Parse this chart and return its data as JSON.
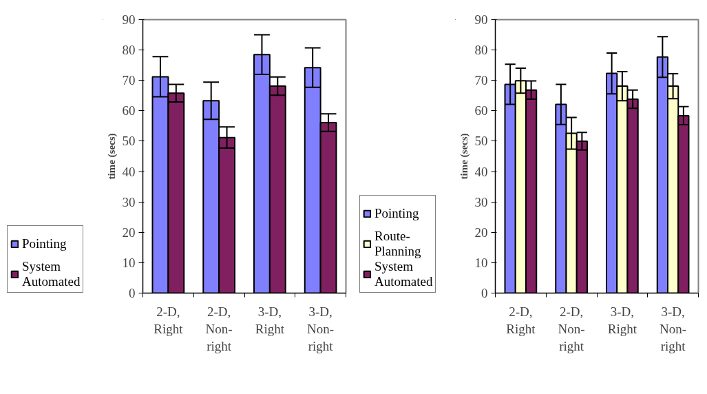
{
  "chart_data": [
    {
      "type": "bar",
      "ylabel": "time (secs)",
      "categories": [
        "2-D, Right",
        "2-D, Non-right",
        "3-D, Right",
        "3-D, Non-right"
      ],
      "ylim": [
        0,
        90
      ],
      "yticks": [
        0,
        10,
        20,
        30,
        40,
        50,
        60,
        70,
        80,
        90
      ],
      "grid": false,
      "legend": "bottom left",
      "series": [
        {
          "name": "Pointing",
          "color": "#8080ff",
          "values": [
            71.2,
            63.3,
            78.5,
            74.2
          ],
          "errors": [
            6.6,
            6.1,
            6.5,
            6.5
          ]
        },
        {
          "name": "System Automated",
          "color": "#802060",
          "values": [
            65.8,
            51.2,
            68.1,
            56.1
          ],
          "errors": [
            2.9,
            3.5,
            3.0,
            2.9
          ]
        }
      ]
    },
    {
      "type": "bar",
      "ylabel": "time (secs)",
      "categories": [
        "2-D, Right",
        "2-D, Non-right",
        "3-D, Right",
        "3-D, Non-right"
      ],
      "ylim": [
        0,
        90
      ],
      "yticks": [
        0,
        10,
        20,
        30,
        40,
        50,
        60,
        70,
        80,
        90
      ],
      "grid": false,
      "legend": "bottom left",
      "series": [
        {
          "name": "Pointing",
          "color": "#8080ff",
          "values": [
            68.7,
            62.1,
            72.3,
            77.7
          ],
          "errors": [
            6.6,
            6.6,
            6.7,
            6.7
          ]
        },
        {
          "name": "Route-Planning",
          "color": "#ffffcc",
          "values": [
            69.9,
            52.6,
            68.1,
            68.1
          ],
          "errors": [
            4.1,
            5.2,
            4.8,
            4.1
          ]
        },
        {
          "name": "System Automated",
          "color": "#802060",
          "values": [
            66.8,
            50.0,
            63.8,
            58.4
          ],
          "errors": [
            3.0,
            2.9,
            3.0,
            3.0
          ]
        }
      ]
    }
  ]
}
